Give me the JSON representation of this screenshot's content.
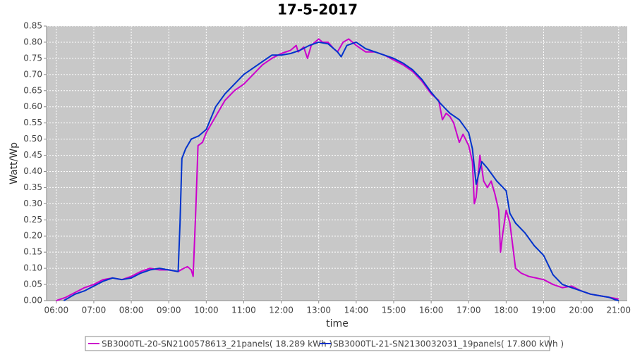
{
  "chart_data": {
    "type": "line",
    "title": "17-5-2017",
    "x_label": "time",
    "y_label": "Watt/Wp",
    "xlim": [
      5.74,
      21.23
    ],
    "ylim": [
      0,
      0.85
    ],
    "grid": true,
    "xticks": [
      {
        "value": 6,
        "label": "06:00"
      },
      {
        "value": 7,
        "label": "07:00"
      },
      {
        "value": 8,
        "label": "08:00"
      },
      {
        "value": 9,
        "label": "09:00"
      },
      {
        "value": 10,
        "label": "10:00"
      },
      {
        "value": 11,
        "label": "11:00"
      },
      {
        "value": 12,
        "label": "12:00"
      },
      {
        "value": 13,
        "label": "13:00"
      },
      {
        "value": 14,
        "label": "14:00"
      },
      {
        "value": 15,
        "label": "15:00"
      },
      {
        "value": 16,
        "label": "16:00"
      },
      {
        "value": 17,
        "label": "17:00"
      },
      {
        "value": 18,
        "label": "18:00"
      },
      {
        "value": 19,
        "label": "19:00"
      },
      {
        "value": 20,
        "label": "20:00"
      },
      {
        "value": 21,
        "label": "21:00"
      }
    ],
    "yticks": [
      {
        "value": 0,
        "label": "0.00"
      },
      {
        "value": 0.05,
        "label": "0.05"
      },
      {
        "value": 0.1,
        "label": "0.10"
      },
      {
        "value": 0.15,
        "label": "0.15"
      },
      {
        "value": 0.2,
        "label": "0.20"
      },
      {
        "value": 0.25,
        "label": "0.25"
      },
      {
        "value": 0.3,
        "label": "0.30"
      },
      {
        "value": 0.35,
        "label": "0.35"
      },
      {
        "value": 0.4,
        "label": "0.40"
      },
      {
        "value": 0.45,
        "label": "0.45"
      },
      {
        "value": 0.5,
        "label": "0.50"
      },
      {
        "value": 0.55,
        "label": "0.55"
      },
      {
        "value": 0.6,
        "label": "0.60"
      },
      {
        "value": 0.65,
        "label": "0.65"
      },
      {
        "value": 0.7,
        "label": "0.70"
      },
      {
        "value": 0.75,
        "label": "0.75"
      },
      {
        "value": 0.8,
        "label": "0.80"
      },
      {
        "value": 0.85,
        "label": "0.85"
      }
    ],
    "series": [
      {
        "name": "SB3000TL-20-SN2100578613_21panels( 18.289 kWh )",
        "color": "#cc00cc",
        "x": [
          6.0,
          6.25,
          6.5,
          6.75,
          7.0,
          7.25,
          7.5,
          7.75,
          8.0,
          8.25,
          8.5,
          8.75,
          9.0,
          9.25,
          9.4,
          9.5,
          9.6,
          9.65,
          9.72,
          9.78,
          9.9,
          10.0,
          10.25,
          10.5,
          10.75,
          11.0,
          11.25,
          11.5,
          11.75,
          12.0,
          12.25,
          12.4,
          12.45,
          12.6,
          12.7,
          12.8,
          13.0,
          13.1,
          13.25,
          13.4,
          13.5,
          13.65,
          13.8,
          14.0,
          14.25,
          14.5,
          14.75,
          15.0,
          15.25,
          15.5,
          15.75,
          16.0,
          16.2,
          16.3,
          16.4,
          16.5,
          16.6,
          16.75,
          16.85,
          17.0,
          17.1,
          17.15,
          17.2,
          17.3,
          17.4,
          17.5,
          17.6,
          17.7,
          17.8,
          17.85,
          17.9,
          18.0,
          18.1,
          18.25,
          18.4,
          18.6,
          18.8,
          19.0,
          19.25,
          19.5,
          19.75,
          20.0,
          20.25,
          20.5,
          20.75,
          21.0
        ],
        "values": [
          0,
          0.01,
          0.025,
          0.04,
          0.05,
          0.065,
          0.07,
          0.065,
          0.075,
          0.09,
          0.1,
          0.095,
          0.095,
          0.09,
          0.1,
          0.105,
          0.095,
          0.075,
          0.28,
          0.48,
          0.49,
          0.52,
          0.57,
          0.62,
          0.65,
          0.67,
          0.7,
          0.73,
          0.75,
          0.765,
          0.775,
          0.79,
          0.77,
          0.785,
          0.75,
          0.79,
          0.81,
          0.8,
          0.8,
          0.78,
          0.77,
          0.8,
          0.81,
          0.79,
          0.77,
          0.77,
          0.76,
          0.745,
          0.73,
          0.71,
          0.68,
          0.64,
          0.62,
          0.56,
          0.58,
          0.57,
          0.55,
          0.49,
          0.515,
          0.48,
          0.43,
          0.3,
          0.32,
          0.45,
          0.37,
          0.35,
          0.37,
          0.33,
          0.28,
          0.15,
          0.2,
          0.28,
          0.24,
          0.1,
          0.085,
          0.075,
          0.07,
          0.065,
          0.05,
          0.04,
          0.045,
          0.03,
          0.02,
          0.015,
          0.01,
          0.005
        ]
      },
      {
        "name": "SB3000TL-21-SN2130032031_19panels( 17.800 kWh )",
        "color": "#0033cc",
        "x": [
          6.2,
          6.5,
          6.75,
          7.0,
          7.25,
          7.5,
          7.75,
          8.0,
          8.25,
          8.5,
          8.75,
          9.0,
          9.25,
          9.3,
          9.35,
          9.45,
          9.6,
          9.8,
          10.0,
          10.25,
          10.5,
          10.75,
          11.0,
          11.25,
          11.5,
          11.75,
          12.0,
          12.25,
          12.5,
          12.75,
          13.0,
          13.25,
          13.5,
          13.6,
          13.75,
          14.0,
          14.25,
          14.5,
          14.75,
          15.0,
          15.25,
          15.5,
          15.75,
          16.0,
          16.25,
          16.5,
          16.75,
          17.0,
          17.1,
          17.2,
          17.35,
          17.5,
          17.75,
          18.0,
          18.1,
          18.25,
          18.5,
          18.75,
          19.0,
          19.25,
          19.5,
          19.75,
          20.0,
          20.25,
          20.5,
          20.75,
          20.9,
          21.0
        ],
        "values": [
          0,
          0.02,
          0.03,
          0.045,
          0.06,
          0.07,
          0.065,
          0.07,
          0.085,
          0.095,
          0.1,
          0.095,
          0.09,
          0.24,
          0.44,
          0.47,
          0.5,
          0.51,
          0.53,
          0.6,
          0.64,
          0.67,
          0.7,
          0.72,
          0.74,
          0.76,
          0.76,
          0.765,
          0.775,
          0.79,
          0.8,
          0.795,
          0.77,
          0.755,
          0.79,
          0.8,
          0.78,
          0.77,
          0.76,
          0.75,
          0.735,
          0.715,
          0.685,
          0.645,
          0.61,
          0.58,
          0.56,
          0.52,
          0.47,
          0.36,
          0.43,
          0.41,
          0.37,
          0.34,
          0.27,
          0.24,
          0.21,
          0.17,
          0.14,
          0.08,
          0.05,
          0.04,
          0.03,
          0.02,
          0.015,
          0.01,
          0.003,
          0
        ]
      }
    ]
  }
}
